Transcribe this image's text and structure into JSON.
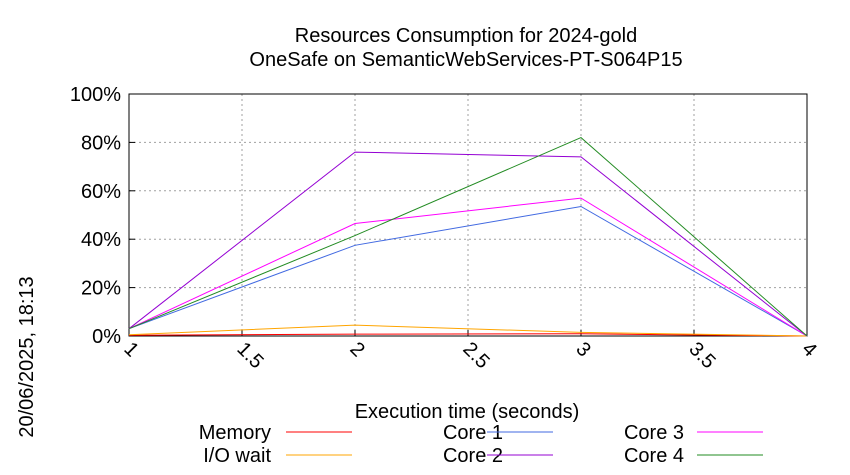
{
  "chart_data": {
    "type": "line",
    "title": "Resources Consumption for 2024-gold",
    "subtitle": "OneSafe on SemanticWebServices-PT-S064P15",
    "xlabel": "Execution time (seconds)",
    "ylabel": "",
    "side_label": "20/06/2025, 18:13",
    "xlim": [
      1,
      4
    ],
    "ylim": [
      0,
      100
    ],
    "x_ticks": [
      "1",
      "1.5",
      "2",
      "2.5",
      "3",
      "3.5",
      "4"
    ],
    "y_ticks": [
      "0%",
      "20%",
      "40%",
      "60%",
      "80%",
      "100%"
    ],
    "grid": true,
    "legend_position": "bottom",
    "series": [
      {
        "name": "Memory",
        "color": "#ff0000",
        "x": [
          1,
          2,
          3,
          4
        ],
        "y": [
          0.3,
          0.8,
          0.9,
          0
        ]
      },
      {
        "name": "I/O wait",
        "color": "#ffa500",
        "x": [
          1,
          2,
          3,
          4
        ],
        "y": [
          0.5,
          4.5,
          1.5,
          0
        ]
      },
      {
        "name": "Core 1",
        "color": "#4169e1",
        "x": [
          1,
          2,
          3,
          4
        ],
        "y": [
          3,
          37.5,
          53.5,
          0
        ]
      },
      {
        "name": "Core 2",
        "color": "#9400d3",
        "x": [
          1,
          2,
          3,
          4
        ],
        "y": [
          3,
          76,
          74,
          0
        ]
      },
      {
        "name": "Core 3",
        "color": "#ff00ff",
        "x": [
          1,
          2,
          3,
          4
        ],
        "y": [
          3,
          46.5,
          57,
          0
        ]
      },
      {
        "name": "Core 4",
        "color": "#228b22",
        "x": [
          1,
          2,
          3,
          4
        ],
        "y": [
          3,
          41.5,
          82,
          0
        ]
      }
    ]
  }
}
